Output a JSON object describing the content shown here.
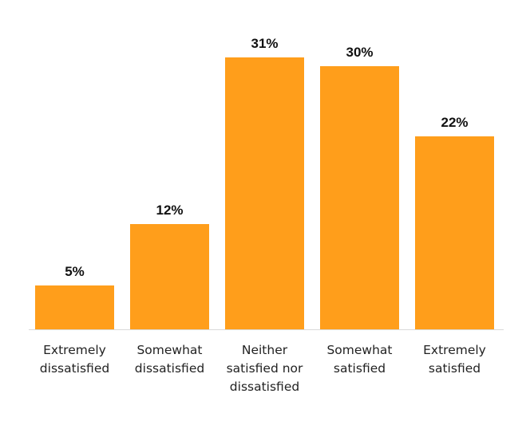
{
  "chart_data": {
    "type": "bar",
    "title": "",
    "xlabel": "",
    "ylabel": "",
    "categories": [
      "Extremely dissatisfied",
      "Somewhat dissatisfied",
      "Neither satisfied nor dissatisfied",
      "Somewhat satisfied",
      "Extremely satisfied"
    ],
    "category_lines": [
      [
        "Extremely",
        "dissatisfied"
      ],
      [
        "Somewhat",
        "dissatisfied"
      ],
      [
        "Neither",
        "satisfied nor",
        "dissatisfied"
      ],
      [
        "Somewhat",
        "satisfied"
      ],
      [
        "Extremely",
        "satisfied"
      ]
    ],
    "values": [
      5,
      12,
      31,
      30,
      22
    ],
    "data_labels": [
      "5%",
      "12%",
      "31%",
      "30%",
      "22%"
    ],
    "ylim": [
      0,
      31
    ],
    "grid": false,
    "legend": "none",
    "bar_color": "#FF9E1B",
    "baseline_color": "#D9D9D9"
  }
}
